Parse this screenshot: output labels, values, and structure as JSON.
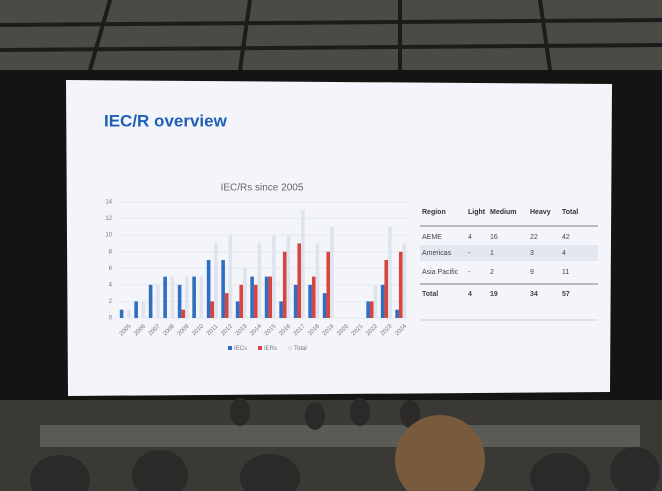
{
  "slide_title": "IEC/R overview",
  "chart_data": {
    "type": "bar",
    "title": "IEC/Rs since 2005",
    "categories": [
      "2005",
      "2006",
      "2007",
      "2008",
      "2009",
      "2010",
      "2011",
      "2012",
      "2013",
      "2014",
      "2015",
      "2016",
      "2017",
      "2018",
      "2019",
      "2020",
      "2021",
      "2022",
      "2023",
      "2024"
    ],
    "series": [
      {
        "name": "IECs",
        "color": "#2f6fc0",
        "values": [
          1,
          2,
          4,
          5,
          4,
          5,
          7,
          7,
          2,
          5,
          5,
          2,
          4,
          4,
          3,
          0,
          0,
          2,
          4,
          1
        ]
      },
      {
        "name": "IERs",
        "color": "#d9443f",
        "values": [
          0,
          0,
          0,
          0,
          1,
          0,
          2,
          3,
          4,
          4,
          5,
          8,
          9,
          5,
          8,
          0,
          0,
          2,
          7,
          8
        ]
      },
      {
        "name": "Total",
        "color": "#dfe3ec",
        "values": [
          1,
          2,
          4,
          5,
          5,
          5,
          9,
          10,
          6,
          9,
          10,
          10,
          13,
          9,
          11,
          0,
          0,
          4,
          11,
          9
        ]
      }
    ],
    "ylim": [
      0,
      14
    ],
    "yticks": [
      0,
      2,
      4,
      6,
      8,
      10,
      12,
      14
    ],
    "grid": true
  },
  "table": {
    "header": [
      "Region",
      "Light",
      "Medium",
      "Heavy",
      "Total"
    ],
    "rows": [
      [
        "AEME",
        4,
        16,
        22,
        42
      ],
      [
        "Americas",
        "-",
        1,
        3,
        4
      ],
      [
        "Asia Pacific",
        "-",
        2,
        9,
        11
      ],
      [
        "Total",
        4,
        19,
        34,
        57
      ]
    ]
  }
}
